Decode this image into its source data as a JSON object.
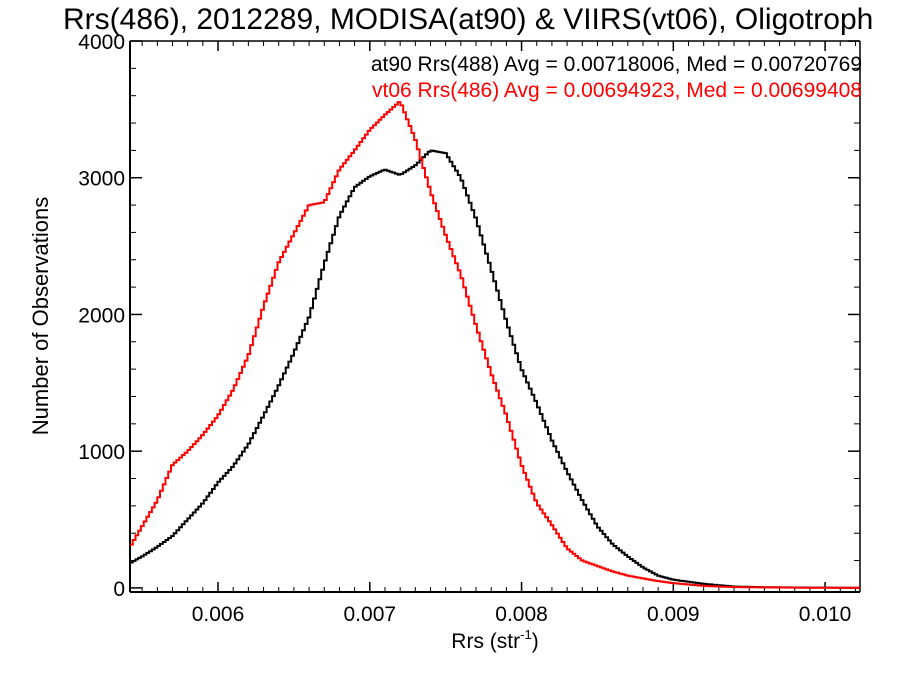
{
  "chart_data": {
    "type": "line",
    "title": "Rrs(486), 2012289, MODISA(at90) & VIIRS(vt06), Oligotroph",
    "xlabel": "Rrs (str",
    "xlabel_sup": "-1",
    "xlabel_close": ")",
    "ylabel": "Number of Observations",
    "xlim": [
      0.00542,
      0.01023
    ],
    "ylim": [
      -30,
      4000
    ],
    "xticks": [
      "0.006",
      "0.007",
      "0.008",
      "0.009",
      "0.010"
    ],
    "yticks": [
      "0",
      "1000",
      "2000",
      "3000",
      "4000"
    ],
    "grid": false,
    "legend_position": "top-right",
    "style": "histogram-step",
    "series": [
      {
        "name": "at90 Rrs(488) Avg = 0.00718006, Med = 0.00720769",
        "color": "#000000",
        "x": [
          0.00542,
          0.0055,
          0.0056,
          0.0057,
          0.0058,
          0.0059,
          0.006,
          0.0061,
          0.0062,
          0.0063,
          0.0064,
          0.0065,
          0.0066,
          0.0067,
          0.0068,
          0.0069,
          0.007,
          0.0071,
          0.0072,
          0.0073,
          0.0074,
          0.0075,
          0.0076,
          0.0077,
          0.0078,
          0.0079,
          0.008,
          0.0081,
          0.0082,
          0.0083,
          0.0084,
          0.0085,
          0.0086,
          0.0087,
          0.0088,
          0.0089,
          0.009,
          0.0091,
          0.0092,
          0.0093,
          0.0094,
          0.0096,
          0.0098,
          0.01,
          0.01023
        ],
        "y": [
          180,
          230,
          300,
          380,
          500,
          620,
          770,
          890,
          1050,
          1260,
          1480,
          1720,
          1980,
          2370,
          2720,
          2930,
          3010,
          3060,
          3020,
          3090,
          3200,
          3180,
          3000,
          2700,
          2330,
          1950,
          1600,
          1350,
          1080,
          850,
          640,
          450,
          320,
          230,
          150,
          90,
          60,
          45,
          30,
          20,
          10,
          5,
          3,
          2,
          1
        ]
      },
      {
        "name": "vt06 Rrs(486) Avg = 0.00694923, Med = 0.00699408",
        "color": "#ff0000",
        "x": [
          0.00542,
          0.0055,
          0.0056,
          0.0057,
          0.0058,
          0.0059,
          0.006,
          0.0061,
          0.0062,
          0.0063,
          0.0064,
          0.0065,
          0.0066,
          0.0067,
          0.0068,
          0.0069,
          0.007,
          0.0071,
          0.0072,
          0.0073,
          0.0074,
          0.0075,
          0.0076,
          0.0077,
          0.0078,
          0.0079,
          0.008,
          0.0081,
          0.0082,
          0.0083,
          0.0084,
          0.0085,
          0.0086,
          0.0087,
          0.0088,
          0.0089,
          0.009,
          0.0091,
          0.0092,
          0.0093,
          0.0094,
          0.0096,
          0.0098,
          0.01,
          0.01023
        ],
        "y": [
          300,
          450,
          640,
          900,
          1000,
          1120,
          1260,
          1450,
          1700,
          2060,
          2380,
          2590,
          2800,
          2820,
          3060,
          3200,
          3350,
          3460,
          3560,
          3280,
          2900,
          2580,
          2290,
          1920,
          1570,
          1260,
          900,
          620,
          460,
          290,
          200,
          160,
          120,
          90,
          70,
          50,
          35,
          25,
          15,
          10,
          6,
          4,
          2,
          1,
          1
        ]
      }
    ]
  }
}
